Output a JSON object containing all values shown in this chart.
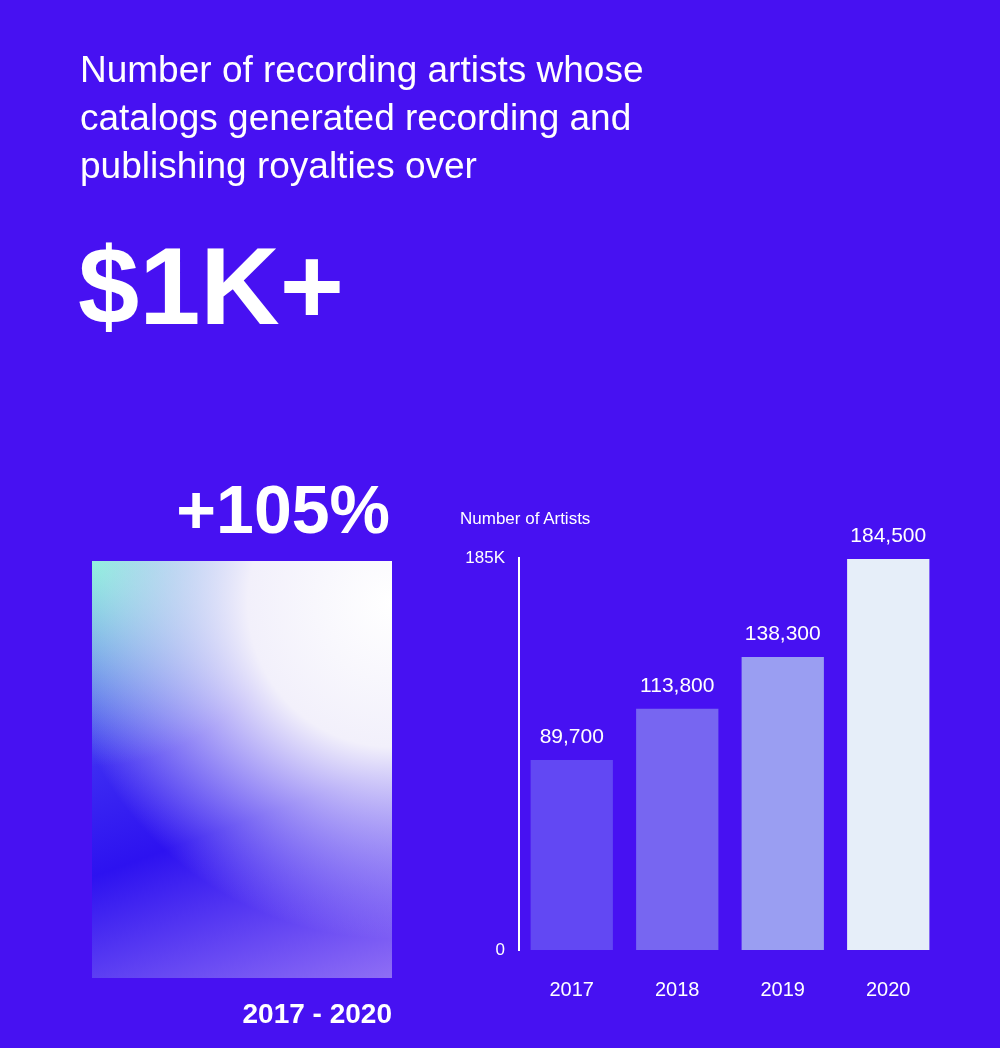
{
  "chart_data": {
    "type": "bar",
    "title": "Number of recording artists whose catalogs generated recording and publishing royalties over",
    "subtitle": "$1K+",
    "ylabel": "Number of Artists",
    "categories": [
      "2017",
      "2018",
      "2019",
      "2020"
    ],
    "values": [
      89700,
      113800,
      138300,
      184500
    ],
    "colors": [
      "#6248f3",
      "#7766f1",
      "#9a9ef2",
      "#e6eef9"
    ],
    "ylim": [
      0,
      185000
    ],
    "yticks": [
      {
        "value": 0,
        "label": "0"
      },
      {
        "value": 185000,
        "label": "185K"
      }
    ],
    "value_labels": [
      "89,700",
      "113,800",
      "138,300",
      "184,500"
    ],
    "grid": false,
    "legend": false,
    "annotations": [
      "+105%",
      "2017 - 2020"
    ]
  }
}
